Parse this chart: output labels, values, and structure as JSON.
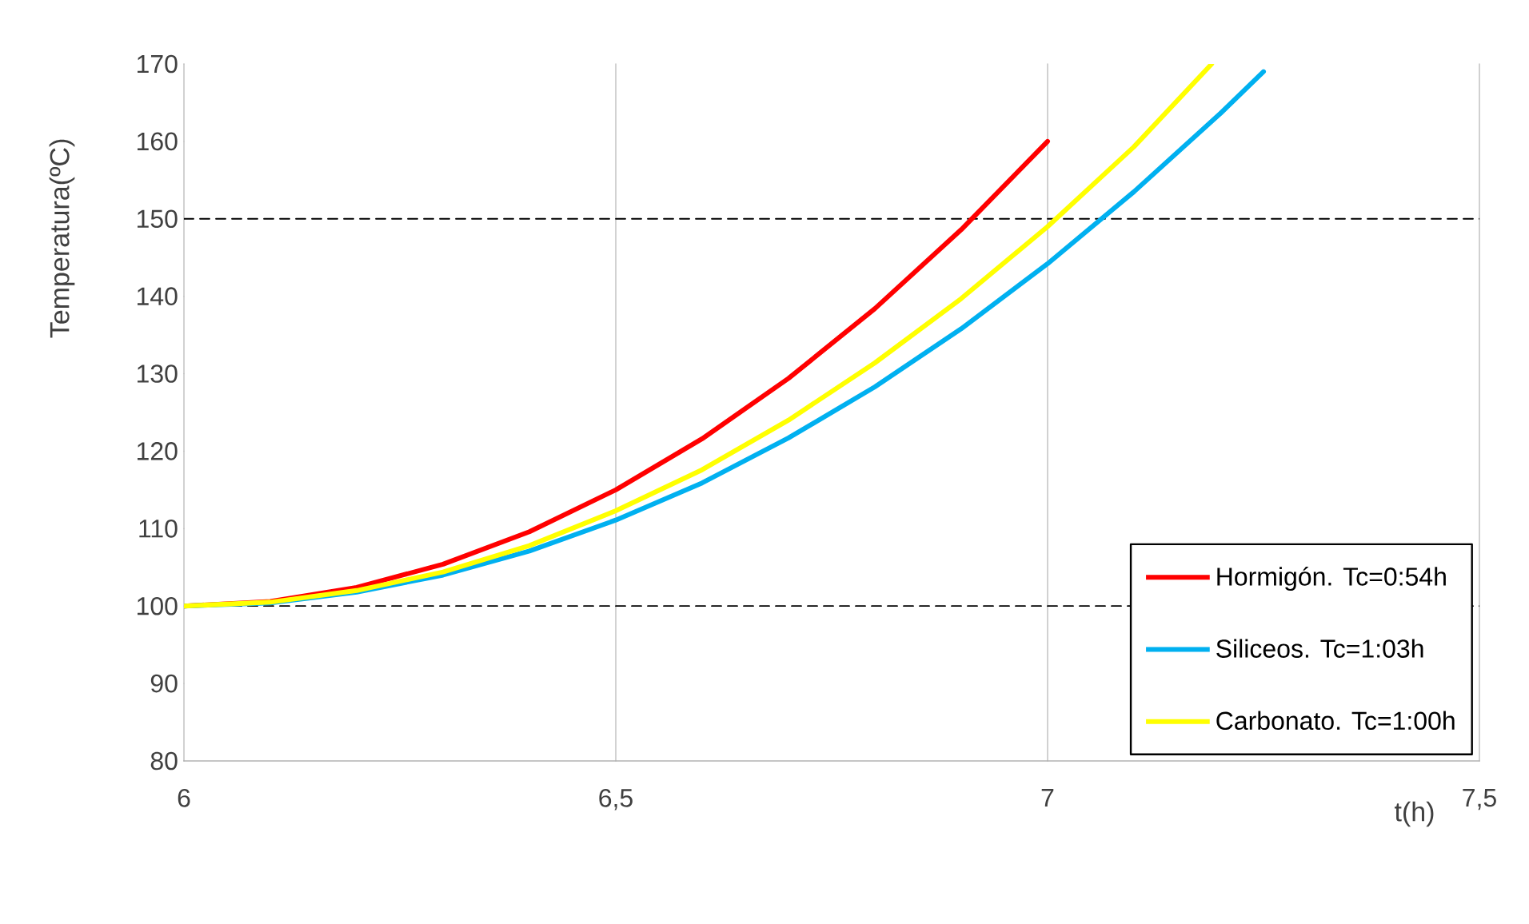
{
  "chart_data": {
    "type": "line",
    "xlabel": "t(h)",
    "ylabel": "Temperatura(ºC)",
    "xlim": [
      6,
      7.5
    ],
    "ylim": [
      80,
      170
    ],
    "xticks": [
      6,
      {
        "value": 6.5,
        "label": "6,5"
      },
      7,
      {
        "value": 7.5,
        "label": "7,5"
      }
    ],
    "yticks": [
      80,
      90,
      100,
      110,
      120,
      130,
      140,
      150,
      160,
      170
    ],
    "grid": "x",
    "legend": "bottom right",
    "marker": "none",
    "line_style": "solid",
    "ref_lines": [
      {
        "axis": "y",
        "value": 100,
        "color": "#000000",
        "line_style": "dashed"
      },
      {
        "axis": "y",
        "value": 150,
        "color": "#000000",
        "line_style": "dashed"
      }
    ],
    "series": [
      {
        "name": "Hormigón. Tc=0:54h",
        "color": "#ff0000",
        "x": [
          6,
          6.1,
          6.2,
          6.3,
          6.4,
          6.5,
          6.6,
          6.7,
          6.8,
          6.9,
          7
        ],
        "values": [
          100,
          100.6,
          102.4,
          105.4,
          109.6,
          115,
          121.6,
          129.4,
          138.4,
          148.6,
          160
        ]
      },
      {
        "name": "Siliceos. Tc=1:03h",
        "color": "#00b0f0",
        "x": [
          6,
          6.1,
          6.2,
          6.3,
          6.4,
          6.5,
          6.6,
          6.7,
          6.8,
          6.9,
          7,
          7.1,
          7.2,
          7.25
        ],
        "values": [
          100,
          100.4,
          101.8,
          104,
          107.1,
          111.1,
          115.9,
          121.7,
          128.3,
          135.8,
          144.2,
          153.5,
          163.6,
          169
        ]
      },
      {
        "name": "Carbonato. Tc=1:00h",
        "color": "#ffff00",
        "x": [
          6,
          6.1,
          6.2,
          6.3,
          6.4,
          6.5,
          6.6,
          6.7,
          6.8,
          6.9,
          7,
          7.1,
          7.19
        ],
        "values": [
          100,
          100.5,
          102,
          104.4,
          107.8,
          112.3,
          117.6,
          124,
          131.4,
          139.7,
          149,
          159.3,
          170
        ]
      }
    ]
  }
}
